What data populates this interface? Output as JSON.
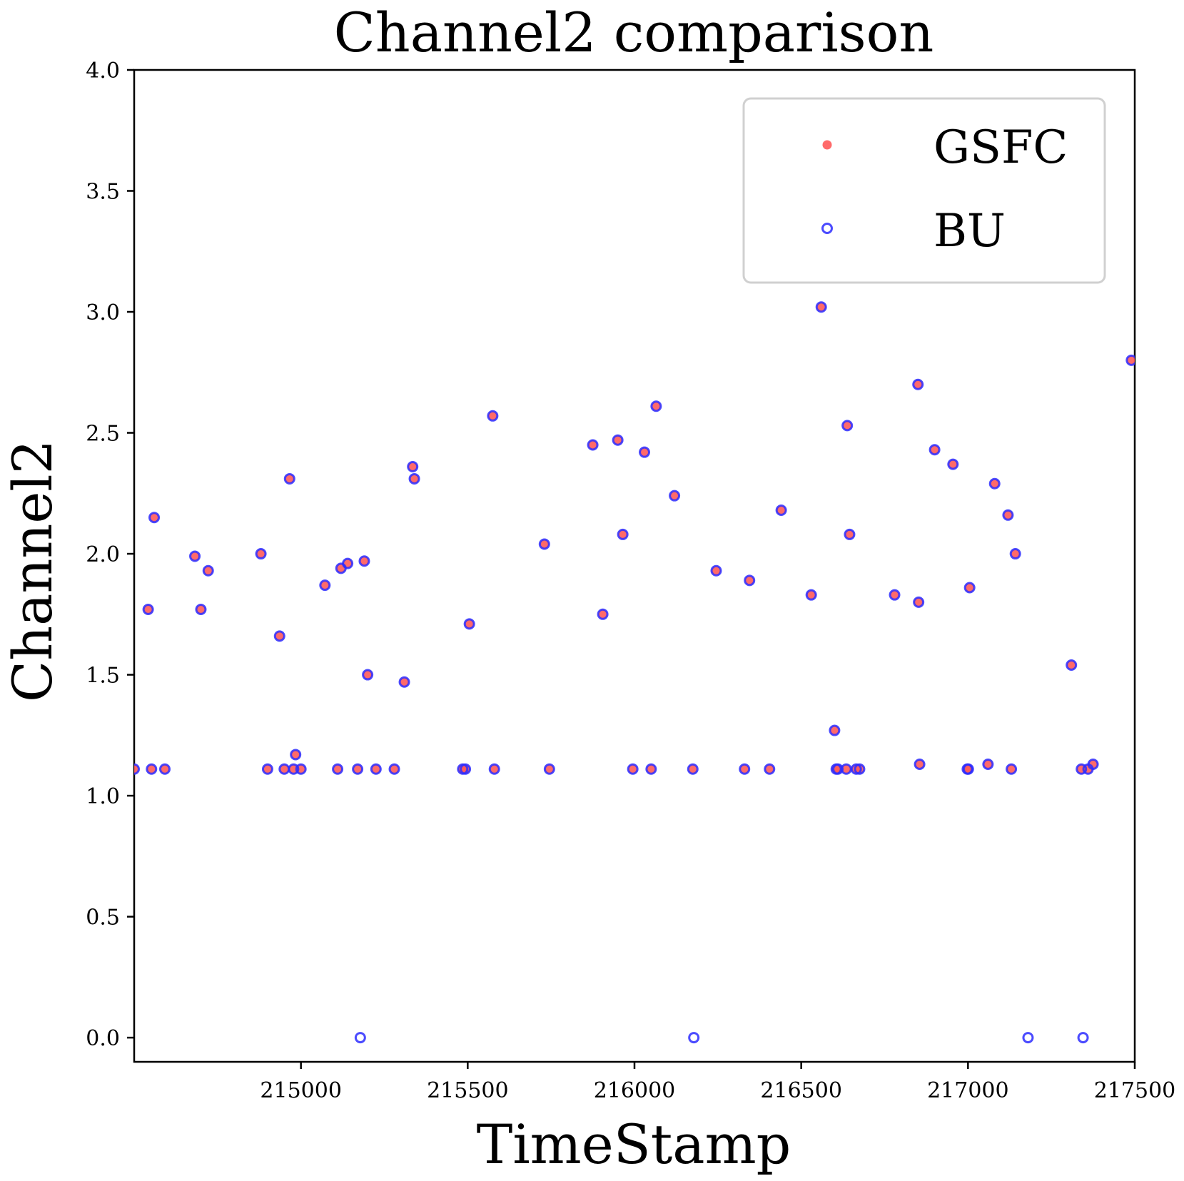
{
  "chart_data": {
    "type": "scatter",
    "title": "Channel2 comparison",
    "xlabel": "TimeStamp",
    "ylabel": "Channel2",
    "xlim": [
      214500,
      217500
    ],
    "ylim": [
      -0.1,
      4.0
    ],
    "xticks": [
      215000,
      215500,
      216000,
      216500,
      217000,
      217500
    ],
    "yticks": [
      0.0,
      0.5,
      1.0,
      1.5,
      2.0,
      2.5,
      3.0,
      3.5,
      4.0
    ],
    "xtick_labels": [
      "215000",
      "215500",
      "216000",
      "216500",
      "217000",
      "217500"
    ],
    "ytick_labels": [
      "0.0",
      "0.5",
      "1.0",
      "1.5",
      "2.0",
      "2.5",
      "3.0",
      "3.5",
      "4.0"
    ],
    "grid": false,
    "legend_position": "top-right",
    "colors": {
      "GSFC": "#ff5a5a",
      "BU": "#2b2bff"
    },
    "series": [
      {
        "name": "GSFC",
        "marker": "filled-circle",
        "x": [
          214500,
          214542,
          214552,
          214560,
          214592,
          214682,
          214700,
          214722,
          214880,
          214900,
          214936,
          214950,
          214966,
          214978,
          214984,
          215000,
          215072,
          215110,
          215120,
          215140,
          215170,
          215190,
          215200,
          215225,
          215280,
          215310,
          215335,
          215340,
          215485,
          215493,
          215505,
          215575,
          215580,
          215730,
          215745,
          215875,
          215905,
          215950,
          215965,
          215995,
          216030,
          216050,
          216065,
          216120,
          216175,
          216245,
          216330,
          216345,
          216405,
          216440,
          216530,
          216560,
          216600,
          216605,
          216610,
          216635,
          216638,
          216645,
          216665,
          216675,
          216780,
          216850,
          216852,
          216855,
          216900,
          216955,
          216998,
          217001,
          217005,
          217060,
          217080,
          217120,
          217130,
          217142,
          217310,
          217340,
          217360,
          217375,
          217490
        ],
        "y": [
          1.11,
          1.77,
          1.11,
          2.15,
          1.11,
          1.99,
          1.77,
          1.93,
          2.0,
          1.11,
          1.66,
          1.11,
          2.31,
          1.11,
          1.17,
          1.11,
          1.87,
          1.11,
          1.94,
          1.96,
          1.11,
          1.97,
          1.5,
          1.11,
          1.11,
          1.47,
          2.36,
          2.31,
          1.11,
          1.11,
          1.71,
          2.57,
          1.11,
          2.04,
          1.11,
          2.45,
          1.75,
          2.47,
          2.08,
          1.11,
          2.42,
          1.11,
          2.61,
          2.24,
          1.11,
          1.93,
          1.11,
          1.89,
          1.11,
          2.18,
          1.83,
          3.02,
          1.27,
          1.11,
          1.11,
          1.11,
          2.53,
          2.08,
          1.11,
          1.11,
          1.83,
          2.7,
          1.8,
          1.13,
          2.43,
          2.37,
          1.11,
          1.11,
          1.86,
          1.13,
          2.29,
          2.16,
          1.11,
          2.0,
          1.54,
          1.11,
          1.11,
          1.13,
          2.8
        ]
      },
      {
        "name": "BU",
        "marker": "open-circle",
        "x": [
          214500,
          214542,
          214552,
          214560,
          214592,
          214682,
          214700,
          214722,
          214880,
          214900,
          214936,
          214950,
          214966,
          214978,
          214984,
          215000,
          215072,
          215110,
          215120,
          215140,
          215170,
          215178,
          215190,
          215200,
          215225,
          215280,
          215310,
          215335,
          215340,
          215485,
          215493,
          215505,
          215575,
          215580,
          215730,
          215745,
          215875,
          215905,
          215950,
          215965,
          215995,
          216030,
          216050,
          216065,
          216120,
          216175,
          216178,
          216245,
          216330,
          216345,
          216405,
          216440,
          216530,
          216560,
          216600,
          216605,
          216610,
          216635,
          216638,
          216645,
          216665,
          216675,
          216780,
          216850,
          216852,
          216855,
          216900,
          216955,
          216998,
          217001,
          217005,
          217060,
          217080,
          217120,
          217130,
          217142,
          217180,
          217310,
          217340,
          217345,
          217360,
          217375,
          217490
        ],
        "y": [
          1.11,
          1.77,
          1.11,
          2.15,
          1.11,
          1.99,
          1.77,
          1.93,
          2.0,
          1.11,
          1.66,
          1.11,
          2.31,
          1.11,
          1.17,
          1.11,
          1.87,
          1.11,
          1.94,
          1.96,
          1.11,
          0.0,
          1.97,
          1.5,
          1.11,
          1.11,
          1.47,
          2.36,
          2.31,
          1.11,
          1.11,
          1.71,
          2.57,
          1.11,
          2.04,
          1.11,
          2.45,
          1.75,
          2.47,
          2.08,
          1.11,
          2.42,
          1.11,
          2.61,
          2.24,
          1.11,
          0.0,
          1.93,
          1.11,
          1.89,
          1.11,
          2.18,
          1.83,
          3.02,
          1.27,
          1.11,
          1.11,
          1.11,
          2.53,
          2.08,
          1.11,
          1.11,
          1.83,
          2.7,
          1.8,
          1.13,
          2.43,
          2.37,
          1.11,
          1.11,
          1.86,
          1.13,
          2.29,
          2.16,
          1.11,
          2.0,
          0.0,
          1.54,
          1.11,
          0.0,
          1.11,
          1.13,
          2.8
        ]
      }
    ]
  }
}
